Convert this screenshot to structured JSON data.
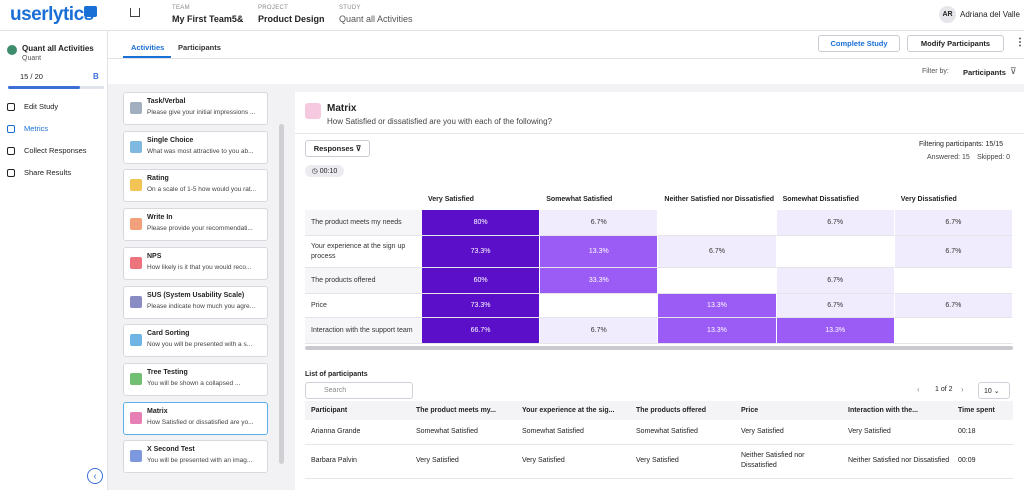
{
  "header": {
    "logo": "userlytics",
    "team_label": "TEAM",
    "team": "My First Team5&",
    "project_label": "PROJECT",
    "project": "Product Design",
    "study_label": "STUDY",
    "study": "Quant all Activities",
    "user_initials": "AR",
    "user_name": "Adriana del Valle"
  },
  "sidebar": {
    "study_title": "Quant all Activities",
    "study_type": "Quant",
    "progress": "15 / 20",
    "badge": "B",
    "nav": [
      "Edit Study",
      "Metrics",
      "Collect Responses",
      "Share Results"
    ]
  },
  "tabs": [
    "Activities",
    "Participants"
  ],
  "actions": {
    "complete": "Complete Study",
    "modify": "Modify Participants",
    "filter_label": "Filter by:",
    "filter_value": "Participants"
  },
  "activities": [
    {
      "title": "Task/Verbal",
      "description": "Please give your initial impressions ...",
      "color": "#8a9bb0"
    },
    {
      "title": "Single Choice",
      "description": "What was most attractive to you ab...",
      "color": "#5fa7d9"
    },
    {
      "title": "Rating",
      "description": "On a scale of 1-5 how would you rat...",
      "color": "#f0b429"
    },
    {
      "title": "Write In",
      "description": "Please provide your recommendati...",
      "color": "#f08a5d"
    },
    {
      "title": "NPS",
      "description": "How likely is it that you would reco...",
      "color": "#e8505b"
    },
    {
      "title": "SUS (System Usability Scale)",
      "description": "Please indicate how much you agre...",
      "color": "#6b6fb5"
    },
    {
      "title": "Card Sorting",
      "description": "Now you will be presented with a s...",
      "color": "#4aa3df"
    },
    {
      "title": "Tree Testing",
      "description": "You will be shown a collapsed ...",
      "color": "#4caf50"
    },
    {
      "title": "Matrix",
      "description": "How Satisfied or dissatisfied are yo...",
      "color": "#e05fa0"
    },
    {
      "title": "X Second Test",
      "description": "You will be presented with an imag...",
      "color": "#5b7fd6"
    }
  ],
  "selected_activity": 8,
  "panel": {
    "title": "Matrix",
    "question": "How Satisfied or dissatisfied are you with each of the following?",
    "responses": "Responses",
    "time": "00:10",
    "filtering": "Filtering participants: 15/15",
    "answered": "Answered: 15",
    "skipped": "Skipped: 0"
  },
  "matrix": {
    "columns": [
      "Very Satisfied",
      "Somewhat Satisfied",
      "Neither Satisfied nor Dissatisfied",
      "Somewhat Dissatisfied",
      "Very Dissatisfied"
    ],
    "rows": [
      {
        "label": "The product meets my needs",
        "values": [
          80,
          6.7,
          null,
          6.7,
          6.7
        ],
        "value_labels": [
          "80%",
          "6.7%",
          null,
          "6.7%",
          "6.7%"
        ]
      },
      {
        "label": "Your experience at the sign up process",
        "values": [
          73.3,
          13.3,
          6.7,
          null,
          6.7
        ],
        "value_labels": [
          "73.3%",
          "13.3%",
          "6.7%",
          null,
          "6.7%"
        ]
      },
      {
        "label": "The products offered",
        "values": [
          60,
          33.3,
          null,
          6.7,
          null
        ],
        "value_labels": [
          "60%",
          "33.3%",
          null,
          "6.7%",
          null
        ]
      },
      {
        "label": "Price",
        "values": [
          73.3,
          null,
          13.3,
          6.7,
          6.7
        ],
        "value_labels": [
          "73.3%",
          null,
          "13.3%",
          "6.7%",
          "6.7%"
        ]
      },
      {
        "label": "Interaction with the support team",
        "values": [
          66.7,
          6.7,
          13.3,
          13.3,
          null
        ],
        "value_labels": [
          "66.7%",
          "6.7%",
          "13.3%",
          "13.3%",
          null
        ]
      }
    ]
  },
  "participants": {
    "title": "List of participants",
    "search": "Search",
    "pagination": "1 of 2",
    "page_size": "10",
    "columns": [
      "Participant",
      "The product meets my...",
      "Your experience at the sig...",
      "The products offered",
      "Price",
      "Interaction with the...",
      "Time spent"
    ],
    "rows": [
      [
        "Arianna Grande",
        "Somewhat Satisfied",
        "Somewhat Satisfied",
        "Somewhat Satisfied",
        "Very Satisfied",
        "Very Satisfied",
        "00:18"
      ],
      [
        "Barbara Palvin",
        "Very Satisfied",
        "Very Satisfied",
        "Very Satisfied",
        "Neither Satisfied nor Dissatisfied",
        "Neither Satisfied nor Dissatisfied",
        "00:09"
      ]
    ]
  }
}
